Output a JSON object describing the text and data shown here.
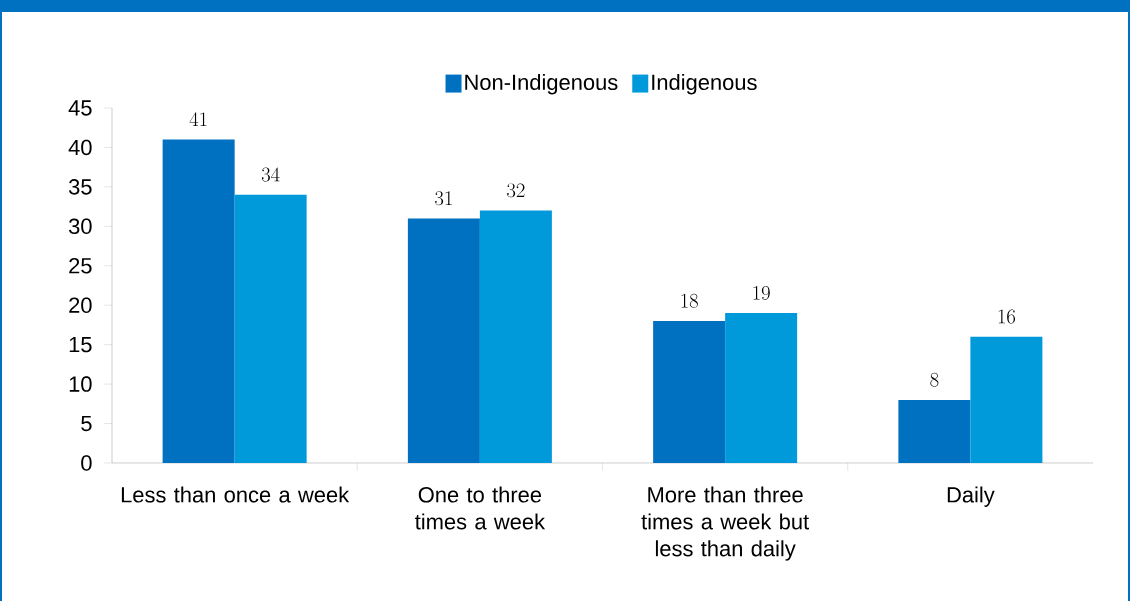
{
  "chart_data": {
    "type": "bar",
    "categories": [
      "Less than once a week",
      "One to three times a week",
      "More than three times a week but less than daily",
      "Daily"
    ],
    "series": [
      {
        "name": "Non-Indigenous",
        "color": "#0070c0",
        "values": [
          41,
          31,
          18,
          8
        ]
      },
      {
        "name": "Indigenous",
        "color": "#009ada",
        "values": [
          34,
          32,
          19,
          16
        ]
      }
    ],
    "ylim": [
      0,
      45
    ],
    "yticks": [
      0,
      5,
      10,
      15,
      20,
      25,
      30,
      35,
      40,
      45
    ],
    "data_labels": true,
    "legend": "top",
    "grid": false
  }
}
